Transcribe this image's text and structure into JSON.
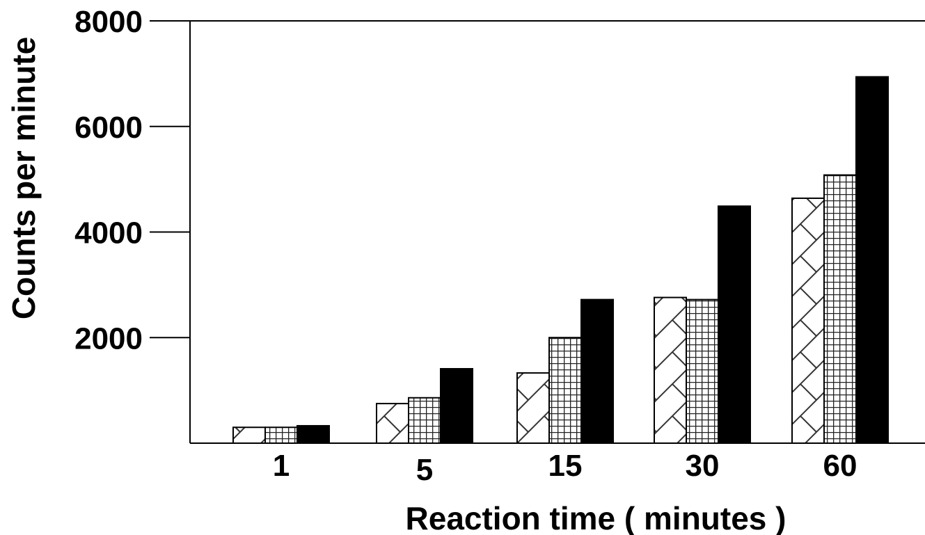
{
  "chart_data": {
    "type": "bar",
    "xlabel": "Reaction time ( minutes )",
    "ylabel": "Counts per minute",
    "categories": [
      "1",
      "5",
      "15",
      "30",
      "60"
    ],
    "yticks": [
      2000,
      4000,
      6000,
      8000
    ],
    "ylim": [
      0,
      8000
    ],
    "grid": false,
    "series": [
      {
        "pattern": "diagonal-brick",
        "color": "#ffffff",
        "values": [
          300,
          750,
          1330,
          2760,
          4640
        ]
      },
      {
        "pattern": "grid",
        "color": "#ffffff",
        "values": [
          300,
          860,
          2000,
          2720,
          5080
        ]
      },
      {
        "pattern": "solid",
        "color": "#000000",
        "values": [
          330,
          1410,
          2720,
          4490,
          6940
        ]
      }
    ]
  }
}
